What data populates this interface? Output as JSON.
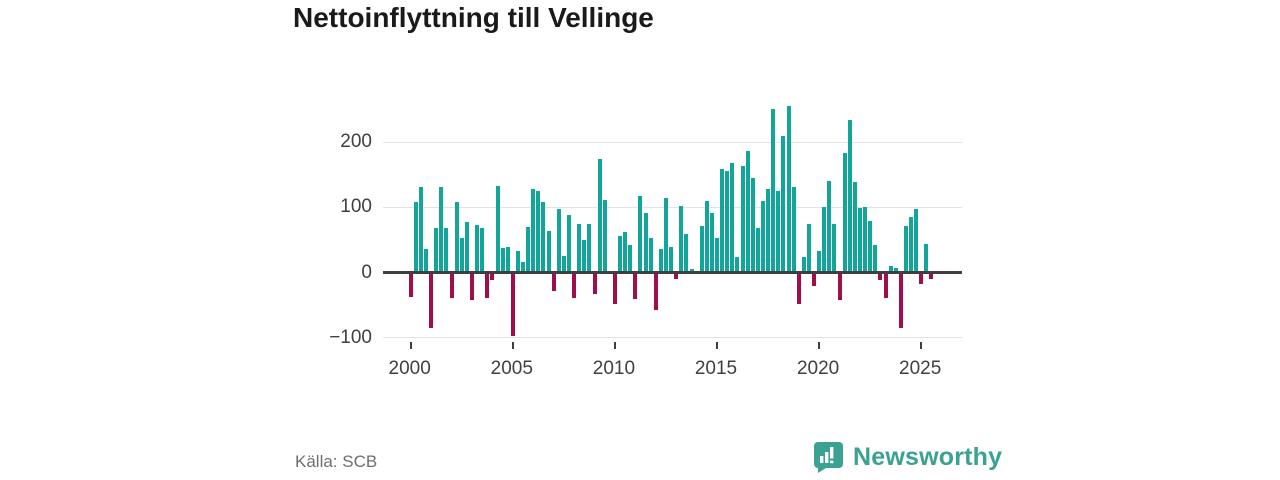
{
  "title": "Nettoinflyttning till Vellinge",
  "source": "Källa: SCB",
  "brand": {
    "name": "Newsworthy",
    "logo_icon": "speech-bubble-bar-chart-icon",
    "color": "#3aa193"
  },
  "chart_data": {
    "type": "bar",
    "title": "Nettoinflyttning till Vellinge",
    "xlabel": "",
    "ylabel": "",
    "frequency": "quarterly",
    "start_year": 2000,
    "start_quarter": 1,
    "ylim": [
      -130,
      275
    ],
    "grid": "horizontal",
    "legend": "none",
    "positive_color": "#12a69b",
    "negative_color": "#a10d4d",
    "y_ticks": [
      {
        "value": 200,
        "label": "200"
      },
      {
        "value": 100,
        "label": "100"
      },
      {
        "value": 0,
        "label": "0"
      },
      {
        "value": -100,
        "label": "−100"
      }
    ],
    "x_ticks": [
      {
        "year": 2000,
        "label": "2000"
      },
      {
        "year": 2005,
        "label": "2005"
      },
      {
        "year": 2010,
        "label": "2010"
      },
      {
        "year": 2015,
        "label": "2015"
      },
      {
        "year": 2020,
        "label": "2020"
      },
      {
        "year": 2025,
        "label": "2025"
      }
    ],
    "values": [
      -35,
      108,
      130,
      36,
      -83,
      67,
      131,
      68,
      -37,
      107,
      52,
      77,
      -40,
      72,
      68,
      -36,
      -9,
      132,
      37,
      38,
      -95,
      32,
      15,
      69,
      127,
      125,
      107,
      63,
      -26,
      96,
      25,
      88,
      -36,
      73,
      49,
      74,
      -31,
      174,
      110,
      0,
      -46,
      56,
      62,
      42,
      -39,
      116,
      91,
      52,
      -55,
      36,
      114,
      38,
      -8,
      101,
      58,
      4,
      0,
      70,
      109,
      90,
      52,
      158,
      155,
      168,
      23,
      162,
      185,
      145,
      67,
      109,
      128,
      250,
      125,
      208,
      255,
      131,
      -46,
      23,
      73,
      -18,
      33,
      100,
      139,
      74,
      -40,
      182,
      233,
      138,
      98,
      100,
      79,
      42,
      -9,
      -36,
      10,
      6,
      -83,
      71,
      85,
      96,
      -16,
      43,
      -8
    ]
  }
}
